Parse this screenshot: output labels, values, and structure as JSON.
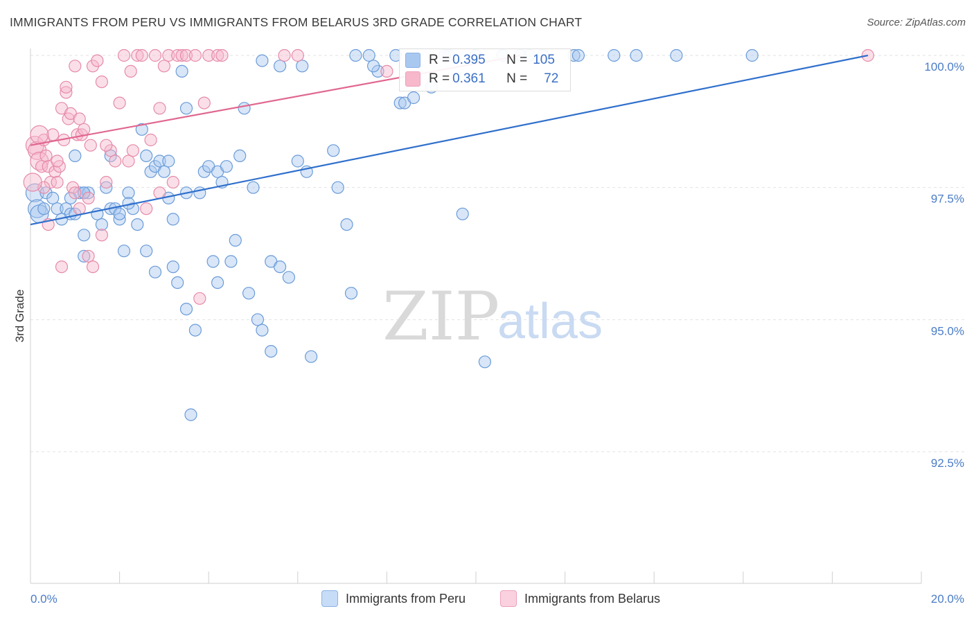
{
  "header": {
    "title": "IMMIGRANTS FROM PERU VS IMMIGRANTS FROM BELARUS 3RD GRADE CORRELATION CHART",
    "source": "Source: ZipAtlas.com"
  },
  "watermark": {
    "zip": "ZIP",
    "atlas": "atlas"
  },
  "legend": {
    "rows": [
      {
        "r_label": "R =",
        "r_value": "0.395",
        "n_label": "N =",
        "n_value": "105",
        "color": "#a9c8f0"
      },
      {
        "r_label": "R =",
        "r_value": "0.361",
        "n_label": "N =",
        "n_value": "72",
        "color": "#f7b8cc"
      }
    ]
  },
  "bottom_legend": {
    "items": [
      {
        "label": "Immigrants from Peru",
        "color": "#a9c8f0"
      },
      {
        "label": "Immigrants from Belarus",
        "color": "#f7b8cc"
      }
    ]
  },
  "chart_data": {
    "type": "scatter",
    "title": "IMMIGRANTS FROM PERU VS IMMIGRANTS FROM BELARUS 3RD GRADE CORRELATION CHART",
    "xlabel": "",
    "ylabel": "3rd Grade",
    "xlim": [
      0,
      20
    ],
    "ylim": [
      90.0,
      100.2
    ],
    "x_tick_labels": [
      {
        "value": 0,
        "label": "0.0%"
      },
      {
        "value": 20,
        "label": "20.0%"
      }
    ],
    "y_tick_labels": [
      {
        "value": 100.0,
        "label": "100.0%"
      },
      {
        "value": 97.5,
        "label": "97.5%"
      },
      {
        "value": 95.0,
        "label": "95.0%"
      },
      {
        "value": 92.5,
        "label": "92.5%"
      }
    ],
    "grid": true,
    "series": [
      {
        "name": "Immigrants from Peru",
        "color": "#a9c8f0",
        "stroke": "#6a9bd8",
        "trend": {
          "x": [
            0,
            18.8
          ],
          "y": [
            96.8,
            100.0
          ],
          "color": "#2f6fcc"
        },
        "points": [
          [
            0.1,
            97.4
          ],
          [
            0.15,
            97.1
          ],
          [
            0.2,
            97.0
          ],
          [
            0.3,
            97.1
          ],
          [
            0.35,
            97.4
          ],
          [
            0.5,
            97.3
          ],
          [
            0.6,
            97.1
          ],
          [
            0.7,
            96.9
          ],
          [
            0.8,
            97.1
          ],
          [
            0.9,
            97.0
          ],
          [
            1.0,
            97.0
          ],
          [
            1.1,
            97.4
          ],
          [
            1.2,
            97.4
          ],
          [
            1.3,
            97.4
          ],
          [
            1.5,
            97.0
          ],
          [
            1.7,
            97.5
          ],
          [
            1.8,
            97.1
          ],
          [
            1.9,
            97.1
          ],
          [
            2.0,
            96.9
          ],
          [
            2.1,
            96.3
          ],
          [
            2.2,
            97.4
          ],
          [
            2.3,
            97.1
          ],
          [
            2.4,
            96.8
          ],
          [
            1.6,
            96.8
          ],
          [
            1.2,
            96.6
          ],
          [
            1.2,
            96.2
          ],
          [
            1.0,
            98.1
          ],
          [
            1.2,
            97.4
          ],
          [
            1.8,
            98.1
          ],
          [
            2.0,
            97.0
          ],
          [
            2.5,
            98.6
          ],
          [
            2.6,
            98.1
          ],
          [
            2.7,
            97.8
          ],
          [
            2.8,
            97.9
          ],
          [
            2.9,
            98.0
          ],
          [
            3.0,
            97.8
          ],
          [
            3.1,
            98.0
          ],
          [
            3.1,
            97.3
          ],
          [
            3.2,
            96.9
          ],
          [
            3.5,
            97.4
          ],
          [
            3.8,
            97.4
          ],
          [
            3.9,
            97.8
          ],
          [
            4.0,
            97.9
          ],
          [
            4.2,
            97.8
          ],
          [
            4.3,
            97.6
          ],
          [
            4.4,
            97.9
          ],
          [
            4.6,
            96.5
          ],
          [
            4.7,
            98.1
          ],
          [
            5.0,
            97.5
          ],
          [
            5.2,
            99.9
          ],
          [
            4.8,
            99.0
          ],
          [
            3.5,
            99.0
          ],
          [
            3.4,
            99.7
          ],
          [
            3.3,
            95.7
          ],
          [
            3.2,
            96.0
          ],
          [
            2.8,
            95.9
          ],
          [
            2.6,
            96.3
          ],
          [
            3.5,
            95.2
          ],
          [
            3.6,
            93.2
          ],
          [
            3.7,
            94.8
          ],
          [
            4.1,
            96.1
          ],
          [
            4.2,
            95.7
          ],
          [
            4.5,
            96.1
          ],
          [
            4.9,
            95.5
          ],
          [
            5.1,
            95.0
          ],
          [
            5.2,
            94.8
          ],
          [
            5.4,
            96.1
          ],
          [
            5.6,
            96.0
          ],
          [
            5.8,
            95.8
          ],
          [
            5.4,
            94.4
          ],
          [
            6.0,
            98.0
          ],
          [
            6.2,
            97.8
          ],
          [
            6.3,
            94.3
          ],
          [
            6.8,
            98.2
          ],
          [
            6.9,
            97.5
          ],
          [
            7.1,
            96.8
          ],
          [
            7.2,
            95.5
          ],
          [
            7.3,
            100.0
          ],
          [
            7.6,
            100.0
          ],
          [
            7.8,
            99.7
          ],
          [
            8.2,
            100.0
          ],
          [
            8.3,
            99.1
          ],
          [
            8.4,
            99.1
          ],
          [
            8.6,
            99.2
          ],
          [
            9.0,
            99.4
          ],
          [
            9.3,
            100.0
          ],
          [
            9.4,
            100.0
          ],
          [
            9.7,
            97.0
          ],
          [
            10.0,
            100.0
          ],
          [
            10.2,
            94.2
          ],
          [
            10.6,
            100.0
          ],
          [
            11.0,
            100.0
          ],
          [
            11.2,
            100.0
          ],
          [
            11.5,
            100.0
          ],
          [
            12.2,
            100.0
          ],
          [
            12.3,
            100.0
          ],
          [
            13.1,
            100.0
          ],
          [
            13.6,
            100.0
          ],
          [
            14.5,
            100.0
          ],
          [
            16.2,
            100.0
          ],
          [
            6.1,
            99.8
          ],
          [
            5.6,
            99.8
          ],
          [
            7.7,
            99.8
          ],
          [
            2.2,
            97.2
          ],
          [
            0.9,
            97.3
          ]
        ]
      },
      {
        "name": "Immigrants from Belarus",
        "color": "#f7b8cc",
        "stroke": "#e58aa8",
        "trend": {
          "x": [
            0,
            11.0
          ],
          "y": [
            98.3,
            100.0
          ],
          "color": "#e0678f"
        },
        "points": [
          [
            0.1,
            98.3
          ],
          [
            0.15,
            98.2
          ],
          [
            0.2,
            98.0
          ],
          [
            0.25,
            97.9
          ],
          [
            0.3,
            98.4
          ],
          [
            0.35,
            98.1
          ],
          [
            0.4,
            97.9
          ],
          [
            0.45,
            97.6
          ],
          [
            0.5,
            98.5
          ],
          [
            0.55,
            97.8
          ],
          [
            0.6,
            97.6
          ],
          [
            0.65,
            97.9
          ],
          [
            0.7,
            99.0
          ],
          [
            0.75,
            98.4
          ],
          [
            0.8,
            99.3
          ],
          [
            0.85,
            98.8
          ],
          [
            0.9,
            98.9
          ],
          [
            0.95,
            97.5
          ],
          [
            1.0,
            97.4
          ],
          [
            1.05,
            98.5
          ],
          [
            1.1,
            98.8
          ],
          [
            1.15,
            98.5
          ],
          [
            1.2,
            98.6
          ],
          [
            1.3,
            97.3
          ],
          [
            1.35,
            98.3
          ],
          [
            1.4,
            99.8
          ],
          [
            1.5,
            99.9
          ],
          [
            1.6,
            99.5
          ],
          [
            1.7,
            97.6
          ],
          [
            1.8,
            98.2
          ],
          [
            1.9,
            98.0
          ],
          [
            2.0,
            99.1
          ],
          [
            2.1,
            100.0
          ],
          [
            2.2,
            98.0
          ],
          [
            2.25,
            99.7
          ],
          [
            2.3,
            98.2
          ],
          [
            2.4,
            100.0
          ],
          [
            2.5,
            100.0
          ],
          [
            2.6,
            97.1
          ],
          [
            2.7,
            98.4
          ],
          [
            2.8,
            100.0
          ],
          [
            2.9,
            99.0
          ],
          [
            3.0,
            99.8
          ],
          [
            3.1,
            100.0
          ],
          [
            3.2,
            97.6
          ],
          [
            3.3,
            100.0
          ],
          [
            3.4,
            100.0
          ],
          [
            3.5,
            100.0
          ],
          [
            3.7,
            100.0
          ],
          [
            3.8,
            95.4
          ],
          [
            3.9,
            99.1
          ],
          [
            4.0,
            100.0
          ],
          [
            4.2,
            100.0
          ],
          [
            4.3,
            100.0
          ],
          [
            0.3,
            97.5
          ],
          [
            0.4,
            96.8
          ],
          [
            0.7,
            96.0
          ],
          [
            1.3,
            96.2
          ],
          [
            1.4,
            96.0
          ],
          [
            1.6,
            96.6
          ],
          [
            0.2,
            98.5
          ],
          [
            0.6,
            98.0
          ],
          [
            0.8,
            99.4
          ],
          [
            1.0,
            99.8
          ],
          [
            1.1,
            97.1
          ],
          [
            5.7,
            100.0
          ],
          [
            6.0,
            100.0
          ],
          [
            8.0,
            99.7
          ],
          [
            1.7,
            98.3
          ],
          [
            18.8,
            100.0
          ],
          [
            2.9,
            97.4
          ],
          [
            0.05,
            97.6
          ]
        ]
      }
    ]
  }
}
